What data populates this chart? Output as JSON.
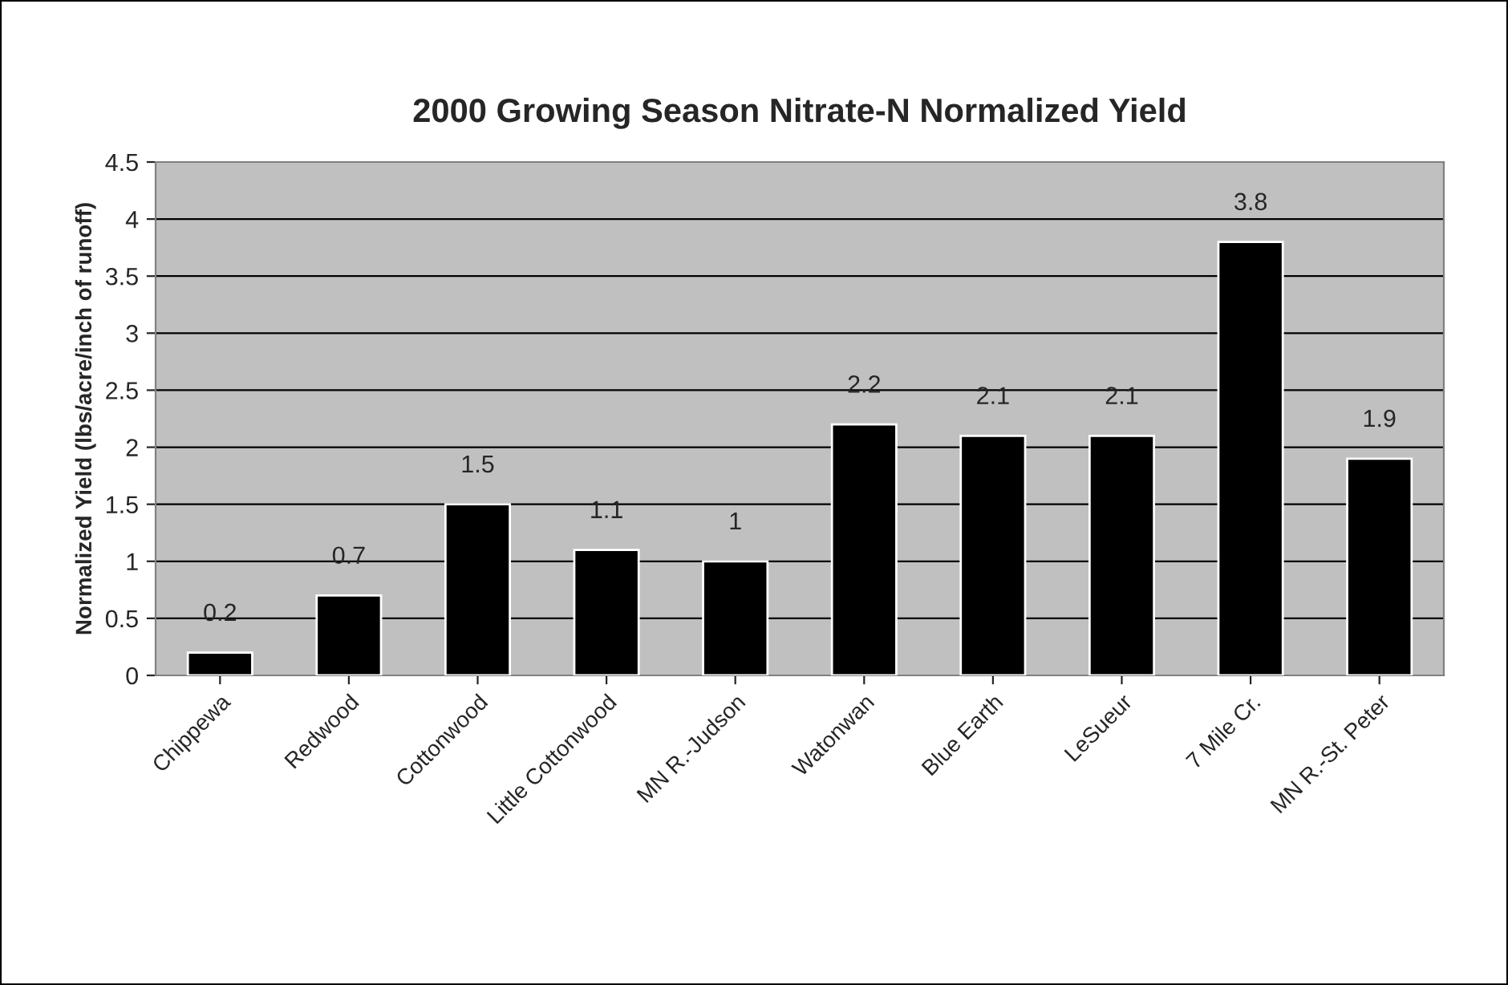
{
  "chart_data": {
    "type": "bar",
    "title": "2000 Growing Season Nitrate-N Normalized Yield",
    "ylabel": "Normalized Yield (lbs/acre/inch of runoff)",
    "categories": [
      "Chippewa",
      "Redwood",
      "Cottonwood",
      "Little Cottonwood",
      "MN R.-Judson",
      "Watonwan",
      "Blue Earth",
      "LeSueur",
      "7 Mile Cr.",
      "MN R.-St. Peter"
    ],
    "values": [
      0.2,
      0.7,
      1.5,
      1.1,
      1,
      2.2,
      2.1,
      2.1,
      3.8,
      1.9
    ],
    "color": "#000000",
    "ylim": [
      0,
      4.5
    ],
    "yticks": [
      0,
      0.5,
      1,
      1.5,
      2,
      2.5,
      3,
      3.5,
      4,
      4.5
    ],
    "grid": "y",
    "data_labels": true
  }
}
